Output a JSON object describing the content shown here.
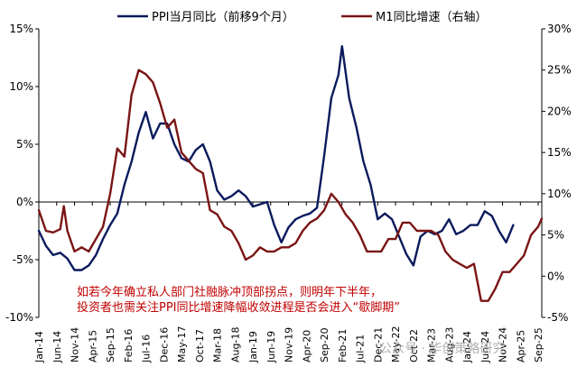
{
  "chart_data": {
    "type": "line",
    "title": "",
    "legend_position": "top",
    "grid": false,
    "left_axis": {
      "ylim": [
        -10,
        15
      ],
      "ticks": [
        -10,
        -5,
        0,
        5,
        10,
        15
      ],
      "unit": "%"
    },
    "right_axis": {
      "ylim": [
        -5,
        30
      ],
      "ticks": [
        -5,
        0,
        5,
        10,
        15,
        20,
        25,
        30
      ],
      "unit": "%"
    },
    "x_tick_labels": [
      "Jan-14",
      "Jun-14",
      "Nov-14",
      "Apr-15",
      "Sep-15",
      "Feb-16",
      "Jul-16",
      "Dec-16",
      "May-17",
      "Oct-17",
      "Mar-18",
      "Aug-18",
      "Jan-19",
      "Jun-19",
      "Nov-19",
      "Apr-20",
      "Sep-20",
      "Feb-21",
      "Jul-21",
      "Dec-21",
      "May-22",
      "Oct-22",
      "Mar-23",
      "Aug-23",
      "Jan-24",
      "Jun-24",
      "Nov-24",
      "Apr-25",
      "Sep-25"
    ],
    "x_range": [
      "2014-01",
      "2025-10"
    ],
    "colors": {
      "ppi": "#0a1a5c",
      "m1": "#7a1414",
      "annotation": "#c00000",
      "axis": "#000000"
    },
    "series": [
      {
        "name": "PPI当月同比（前移9个月）",
        "axis": "left",
        "x": [
          "2014-01",
          "2014-03",
          "2014-05",
          "2014-07",
          "2014-09",
          "2014-11",
          "2015-01",
          "2015-03",
          "2015-05",
          "2015-07",
          "2015-09",
          "2015-11",
          "2016-01",
          "2016-03",
          "2016-05",
          "2016-07",
          "2016-09",
          "2016-11",
          "2017-01",
          "2017-03",
          "2017-05",
          "2017-07",
          "2017-09",
          "2017-11",
          "2018-01",
          "2018-03",
          "2018-05",
          "2018-07",
          "2018-09",
          "2018-11",
          "2019-01",
          "2019-03",
          "2019-05",
          "2019-07",
          "2019-09",
          "2019-11",
          "2020-01",
          "2020-03",
          "2020-05",
          "2020-07",
          "2020-09",
          "2020-11",
          "2021-01",
          "2021-02",
          "2021-04",
          "2021-06",
          "2021-08",
          "2021-10",
          "2021-12",
          "2022-02",
          "2022-04",
          "2022-06",
          "2022-08",
          "2022-10",
          "2022-12",
          "2023-02",
          "2023-04",
          "2023-06",
          "2023-08",
          "2023-10",
          "2023-12",
          "2024-02",
          "2024-04",
          "2024-06",
          "2024-08",
          "2024-10",
          "2024-12",
          "2025-02"
        ],
        "values": [
          -2.5,
          -3.8,
          -4.6,
          -4.4,
          -4.9,
          -5.9,
          -5.9,
          -5.5,
          -4.6,
          -3.2,
          -2.0,
          -1.0,
          1.5,
          3.5,
          6.0,
          7.8,
          5.5,
          6.8,
          6.8,
          5.0,
          3.8,
          3.5,
          4.5,
          5.0,
          3.5,
          1.0,
          0.2,
          0.5,
          1.0,
          0.5,
          -0.4,
          -0.2,
          0.0,
          -2.0,
          -3.5,
          -2.2,
          -1.5,
          -1.2,
          -1.0,
          -0.5,
          4.0,
          9.0,
          11.0,
          13.5,
          9.0,
          6.5,
          3.5,
          1.5,
          -1.5,
          -1.0,
          -1.5,
          -3.0,
          -4.5,
          -5.5,
          -3.0,
          -2.5,
          -2.8,
          -2.5,
          -1.5,
          -2.8,
          -2.5,
          -2.0,
          -2.0,
          -0.8,
          -1.2,
          -2.5,
          -3.5,
          -2.0
        ]
      },
      {
        "name": "M1同比增速（右轴）",
        "axis": "right",
        "x": [
          "2014-01",
          "2014-03",
          "2014-05",
          "2014-07",
          "2014-08",
          "2014-09",
          "2014-11",
          "2015-01",
          "2015-03",
          "2015-05",
          "2015-07",
          "2015-09",
          "2015-11",
          "2016-01",
          "2016-03",
          "2016-05",
          "2016-07",
          "2016-09",
          "2016-11",
          "2017-01",
          "2017-03",
          "2017-05",
          "2017-07",
          "2017-09",
          "2017-11",
          "2018-01",
          "2018-03",
          "2018-05",
          "2018-07",
          "2018-09",
          "2018-11",
          "2019-01",
          "2019-03",
          "2019-05",
          "2019-07",
          "2019-09",
          "2019-11",
          "2020-01",
          "2020-03",
          "2020-05",
          "2020-07",
          "2020-09",
          "2020-11",
          "2021-01",
          "2021-03",
          "2021-05",
          "2021-07",
          "2021-09",
          "2021-11",
          "2022-01",
          "2022-03",
          "2022-05",
          "2022-07",
          "2022-09",
          "2022-11",
          "2023-01",
          "2023-03",
          "2023-05",
          "2023-07",
          "2023-09",
          "2023-11",
          "2024-01",
          "2024-03",
          "2024-05",
          "2024-07",
          "2024-09",
          "2024-11",
          "2025-01",
          "2025-03",
          "2025-05",
          "2025-07",
          "2025-09",
          "2025-10"
        ],
        "values": [
          8.0,
          5.5,
          5.3,
          5.7,
          8.5,
          5.5,
          3.0,
          3.5,
          3.0,
          4.5,
          6.0,
          10.0,
          15.5,
          14.5,
          22.0,
          25.0,
          24.5,
          23.5,
          21.0,
          18.0,
          19.0,
          15.0,
          14.0,
          13.0,
          12.5,
          8.0,
          7.5,
          6.0,
          5.5,
          4.0,
          2.0,
          2.5,
          3.5,
          3.0,
          3.0,
          3.5,
          3.5,
          4.0,
          5.5,
          6.5,
          7.0,
          8.0,
          10.0,
          9.0,
          7.5,
          6.5,
          5.0,
          3.0,
          3.0,
          3.0,
          4.5,
          4.5,
          6.5,
          6.5,
          5.5,
          5.5,
          5.5,
          5.0,
          3.0,
          2.0,
          1.5,
          1.0,
          1.5,
          -3.0,
          -3.0,
          -1.5,
          0.5,
          0.5,
          1.5,
          2.5,
          5.0,
          6.0,
          7.0
        ]
      }
    ],
    "annotation_lines": [
      "如若今年确立私人部门社融脉冲顶部拐点，则明年下半年，",
      "投资者也需关注PPI同比增速降幅收敛进程是否会进入“歇脚期”"
    ],
    "watermark": "公众号 · 华创策略研究"
  }
}
